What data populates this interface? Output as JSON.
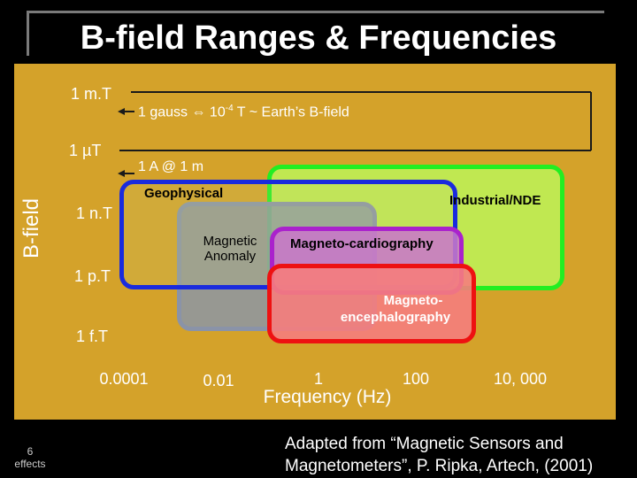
{
  "slide": {
    "title": "B-field Ranges & Frequencies",
    "number": "6",
    "footer_label": "effects",
    "credit_line1": "Adapted from “Magnetic Sensors and",
    "credit_line2": "Magnetometers”, P. Ripka, Artech, (2001)"
  },
  "axes": {
    "y_label": "B-field",
    "x_label": "Frequency (Hz)",
    "y_ticks": [
      "1 m.T",
      "1 µT",
      "1 n.T",
      "1 p.T",
      "1 f.T"
    ],
    "x_ticks": [
      "0.0001",
      "0.01",
      "1",
      "100",
      "10, 000"
    ]
  },
  "annotations": {
    "gauss_prefix": "1 gauss ⇔ 10",
    "gauss_exp": "-4",
    "gauss_suffix": " T ~ Earth’s B-field",
    "current_ref": "1 A @ 1 m"
  },
  "regions": {
    "geophysical": "Geophysical",
    "magnetic_anomaly_1": "Magnetic",
    "magnetic_anomaly_2": "Anomaly",
    "industrial": "Industrial/NDE",
    "mcg": "Magneto-cardiography",
    "meg_1": "Magneto-",
    "meg_2": "encephalography"
  },
  "colors": {
    "panel": "#d4a22a",
    "industrial": "#22ee22",
    "geophysical": "#1a2bdd",
    "anomaly": "#8a93a8",
    "mcg": "#aa22cc",
    "meg": "#ee1111"
  }
}
